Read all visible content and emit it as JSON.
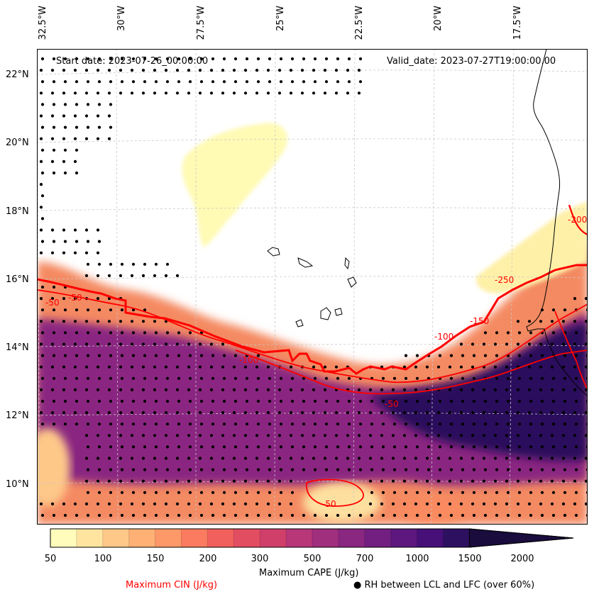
{
  "header": {
    "start_date": "Start date: 2023-07-26_00:00:00",
    "valid_date": "Valid_date: 2023-07-27T19:00:00.00"
  },
  "longitude_labels": [
    "32.5°W",
    "30°W",
    "27.5°W",
    "25°W",
    "22.5°W",
    "20°W",
    "17.5°W"
  ],
  "latitude_labels": [
    "22°N",
    "20°N",
    "18°N",
    "16°N",
    "14°N",
    "12°N",
    "10°N"
  ],
  "contour_labels": [
    "-50",
    "-50",
    "-100",
    "-100",
    "-150",
    "-250",
    "-50",
    "-200",
    "-50"
  ],
  "colorbar": {
    "label": "Maximum CAPE (J/kg)",
    "ticks": [
      "50",
      "100",
      "150",
      "200",
      "300",
      "500",
      "700",
      "1000",
      "1500",
      "2000"
    ],
    "colors": [
      "#fffcbc",
      "#ffe4a0",
      "#fec889",
      "#feb075",
      "#fd9869",
      "#fa7b5f",
      "#f1605c",
      "#e24d62",
      "#cf3f6a",
      "#b73779",
      "#a02f7e",
      "#8a2781",
      "#731f81",
      "#5e177e",
      "#471078",
      "#2e1060",
      "#1a0c3d"
    ]
  },
  "legend": {
    "cin_label": "Maximum CIN (J/kg)",
    "cin_color": "#ff0000",
    "rh_label": "● RH between LCL and LFC (over 60%)"
  }
}
